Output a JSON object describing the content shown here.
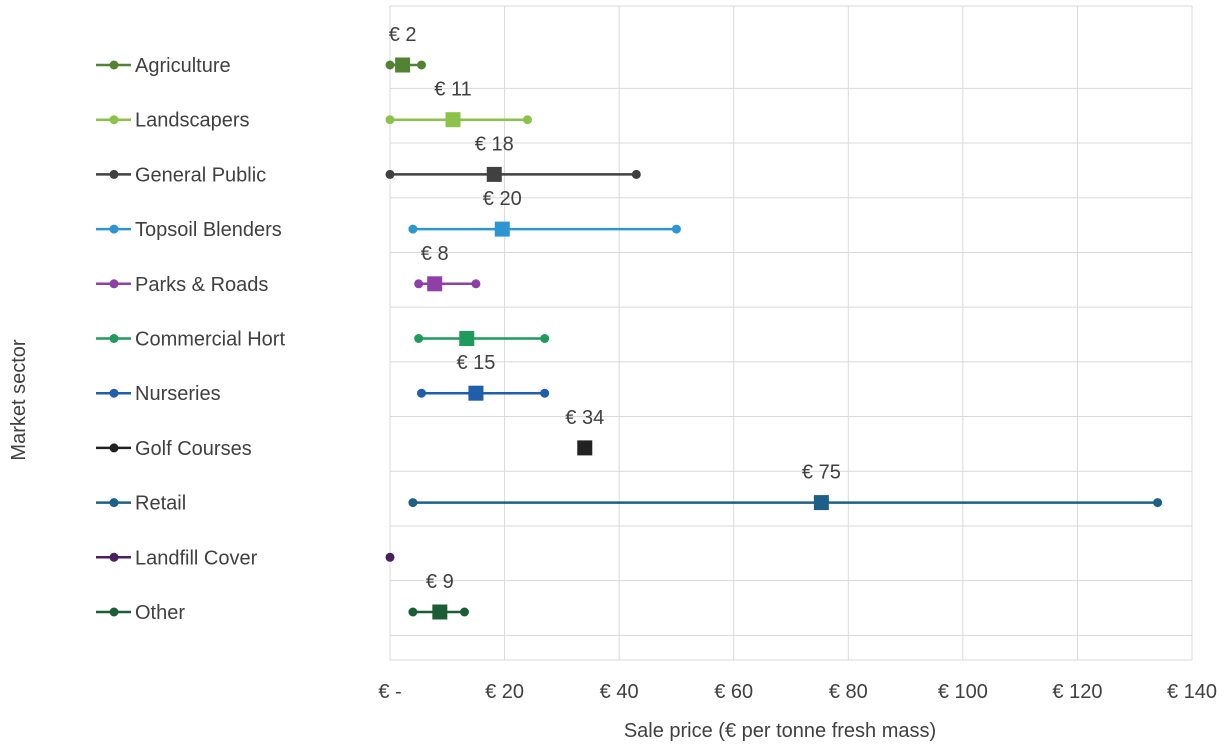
{
  "chart_data": {
    "type": "scatter",
    "orientation": "horizontal-range",
    "title": "",
    "xlabel": "Sale price (€ per tonne fresh mass)",
    "ylabel": "Market sector",
    "xlim": [
      0,
      140
    ],
    "x_ticks": [
      0,
      20,
      40,
      60,
      80,
      100,
      120,
      140
    ],
    "x_tick_labels": [
      "€ -",
      "€ 20",
      "€ 40",
      "€ 60",
      "€ 80",
      "€ 100",
      "€ 120",
      "€ 140"
    ],
    "grid": true,
    "legend_position": "left",
    "series": [
      {
        "name": "Agriculture",
        "min": 0,
        "max": 5.5,
        "mean": 2.2,
        "label": "€ 2",
        "color": "#548235"
      },
      {
        "name": "Landscapers",
        "min": 0,
        "max": 24,
        "mean": 11,
        "label": "€ 11",
        "color": "#8bc34a"
      },
      {
        "name": "General Public",
        "min": 0,
        "max": 43,
        "mean": 18.2,
        "label": "€ 18",
        "color": "#404040"
      },
      {
        "name": "Topsoil Blenders",
        "min": 4,
        "max": 50,
        "mean": 19.6,
        "label": "€ 20",
        "color": "#2e95d3"
      },
      {
        "name": "Parks & Roads",
        "min": 5,
        "max": 15,
        "mean": 7.8,
        "label": "€ 8",
        "color": "#8e3fa8"
      },
      {
        "name": "Commercial Hort",
        "min": 5,
        "max": 27,
        "mean": 13.4,
        "label": "",
        "color": "#1e9a5a"
      },
      {
        "name": "Nurseries",
        "min": 5.5,
        "max": 27,
        "mean": 15,
        "label": "€ 15",
        "color": "#1f5ea8"
      },
      {
        "name": "Golf Courses",
        "min": null,
        "max": null,
        "mean": 34,
        "label": "€ 34",
        "color": "#222222"
      },
      {
        "name": "Retail",
        "min": 4,
        "max": 134,
        "mean": 75.3,
        "label": "€ 75",
        "color": "#1d5f86"
      },
      {
        "name": "Landfill Cover",
        "min": 0,
        "max": 0,
        "mean": null,
        "label": "",
        "color": "#4a1f5e"
      },
      {
        "name": "Other",
        "min": 4,
        "max": 13,
        "mean": 8.7,
        "label": "€ 9",
        "color": "#1b5e35"
      }
    ]
  }
}
